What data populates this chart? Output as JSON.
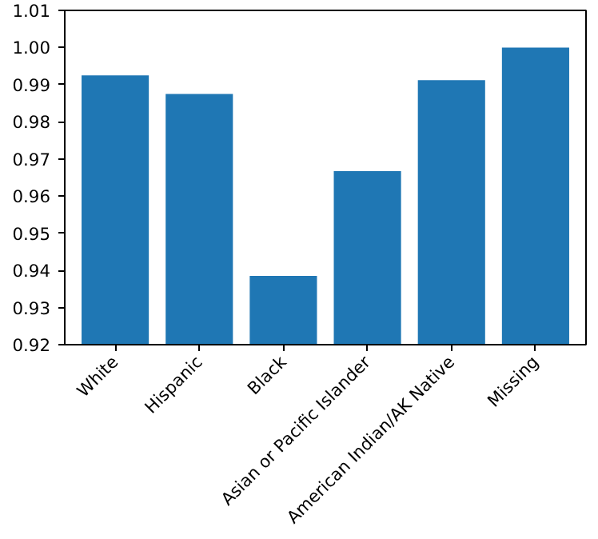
{
  "chart_data": {
    "type": "bar",
    "categories": [
      "White",
      "Hispanic",
      "Black",
      "Asian or Pacific Islander",
      "American Indian/AK Native",
      "Missing"
    ],
    "values": [
      0.9925,
      0.9875,
      0.9385,
      0.9667,
      0.9912,
      1.0
    ],
    "color": "#1f77b4",
    "ylim": [
      0.92,
      1.01
    ],
    "yticks": [
      {
        "value": 0.92,
        "label": "0.92"
      },
      {
        "value": 0.93,
        "label": "0.93"
      },
      {
        "value": 0.94,
        "label": "0.94"
      },
      {
        "value": 0.95,
        "label": "0.95"
      },
      {
        "value": 0.96,
        "label": "0.96"
      },
      {
        "value": 0.97,
        "label": "0.97"
      },
      {
        "value": 0.98,
        "label": "0.98"
      },
      {
        "value": 0.99,
        "label": "0.99"
      },
      {
        "value": 1.0,
        "label": "1.00"
      },
      {
        "value": 1.01,
        "label": "1.01"
      }
    ],
    "grid": false
  }
}
